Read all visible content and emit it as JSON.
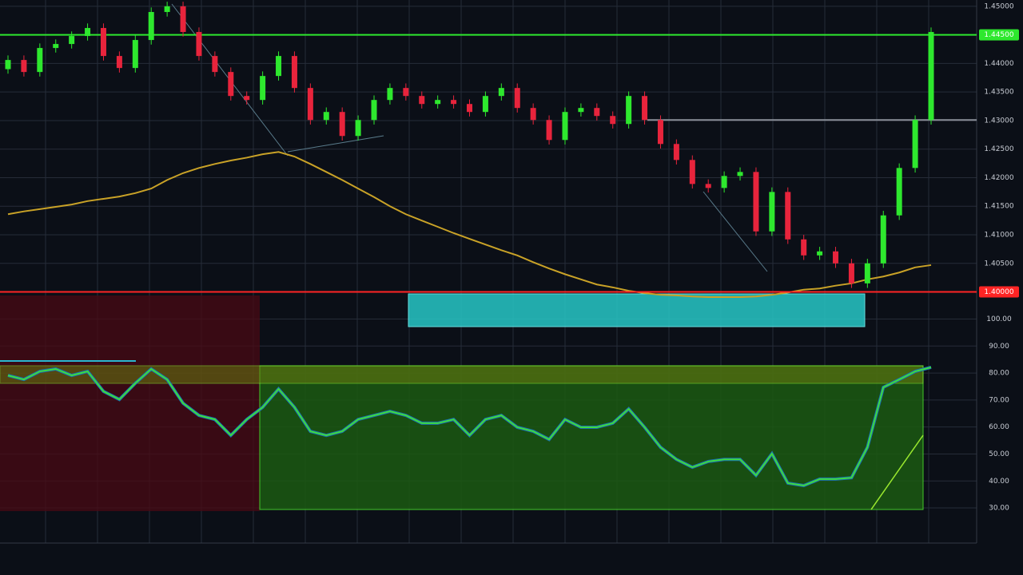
{
  "chart_data": [
    {
      "type": "candlestick",
      "up_color": "#2ee82e",
      "down_color": "#e8243c",
      "open": [
        1.439,
        1.4406,
        1.4385,
        1.4427,
        1.4434,
        1.4448,
        1.4462,
        1.4413,
        1.4392,
        1.4441,
        1.449,
        1.45,
        1.4455,
        1.4413,
        1.4385,
        1.4343,
        1.4336,
        1.4378,
        1.4413,
        1.4357,
        1.4301,
        1.4315,
        1.4273,
        1.4301,
        1.4336,
        1.4357,
        1.4343,
        1.4329,
        1.4336,
        1.4329,
        1.4315,
        1.4343,
        1.4357,
        1.4322,
        1.4301,
        1.4266,
        1.4315,
        1.4322,
        1.4308,
        1.4294,
        1.4343,
        1.4301,
        1.4259,
        1.4231,
        1.4189,
        1.4182,
        1.4203,
        1.421,
        1.4106,
        1.4175,
        1.4092,
        1.4064,
        1.4071,
        1.405,
        1.4015,
        1.405,
        1.4134,
        1.4217,
        1.4301
      ],
      "high": [
        1.4414,
        1.4414,
        1.4435,
        1.4442,
        1.4456,
        1.447,
        1.447,
        1.4421,
        1.4449,
        1.4498,
        1.4508,
        1.4508,
        1.4463,
        1.4421,
        1.4393,
        1.4351,
        1.4386,
        1.4421,
        1.4421,
        1.4365,
        1.4323,
        1.4323,
        1.4309,
        1.4344,
        1.4365,
        1.4365,
        1.4351,
        1.4344,
        1.4344,
        1.4337,
        1.4351,
        1.4365,
        1.4365,
        1.433,
        1.4309,
        1.4323,
        1.433,
        1.433,
        1.4316,
        1.4351,
        1.4351,
        1.4309,
        1.4267,
        1.4239,
        1.4197,
        1.4211,
        1.4218,
        1.4218,
        1.4183,
        1.4183,
        1.41,
        1.4079,
        1.4079,
        1.4058,
        1.4058,
        1.4142,
        1.4225,
        1.4309,
        1.4463
      ],
      "low": [
        1.4382,
        1.4377,
        1.4377,
        1.4419,
        1.4426,
        1.444,
        1.4405,
        1.4384,
        1.4384,
        1.4433,
        1.4482,
        1.4447,
        1.4405,
        1.4377,
        1.4335,
        1.4328,
        1.4328,
        1.437,
        1.4349,
        1.4293,
        1.4293,
        1.4265,
        1.4265,
        1.4293,
        1.4328,
        1.4335,
        1.4321,
        1.4321,
        1.4321,
        1.4307,
        1.4307,
        1.4335,
        1.4314,
        1.4293,
        1.4258,
        1.4258,
        1.4307,
        1.43,
        1.4286,
        1.4286,
        1.4293,
        1.4251,
        1.4223,
        1.4181,
        1.4174,
        1.4174,
        1.4195,
        1.4098,
        1.4098,
        1.4084,
        1.4056,
        1.4056,
        1.4042,
        1.4007,
        1.4007,
        1.4042,
        1.4126,
        1.4209,
        1.4293
      ],
      "close": [
        1.4406,
        1.4385,
        1.4427,
        1.4434,
        1.4448,
        1.4462,
        1.4413,
        1.4392,
        1.4441,
        1.449,
        1.45,
        1.4455,
        1.4413,
        1.4385,
        1.4343,
        1.4336,
        1.4378,
        1.4413,
        1.4357,
        1.4301,
        1.4315,
        1.4273,
        1.4301,
        1.4336,
        1.4357,
        1.4343,
        1.4329,
        1.4336,
        1.4329,
        1.4315,
        1.4343,
        1.4357,
        1.4322,
        1.4301,
        1.4266,
        1.4315,
        1.4322,
        1.4308,
        1.4294,
        1.4343,
        1.4301,
        1.4259,
        1.4231,
        1.4189,
        1.4182,
        1.4203,
        1.421,
        1.4106,
        1.4175,
        1.4092,
        1.4064,
        1.4071,
        1.405,
        1.4015,
        1.405,
        1.4134,
        1.4217,
        1.4301,
        1.4455
      ],
      "moving_average": {
        "color": "#c9a227",
        "values": [
          1.4136,
          1.4141,
          1.4145,
          1.4149,
          1.4153,
          1.4159,
          1.4163,
          1.4167,
          1.4173,
          1.4181,
          1.4196,
          1.4208,
          1.4217,
          1.4224,
          1.423,
          1.4235,
          1.4241,
          1.4245,
          1.4237,
          1.4224,
          1.421,
          1.4196,
          1.4181,
          1.4166,
          1.415,
          1.4136,
          1.4125,
          1.4114,
          1.4103,
          1.4093,
          1.4083,
          1.4073,
          1.4064,
          1.4052,
          1.4041,
          1.4031,
          1.4022,
          1.4013,
          1.4008,
          1.4002,
          1.3998,
          1.3995,
          1.3994,
          1.3992,
          1.3991,
          1.3991,
          1.3991,
          1.3992,
          1.3995,
          1.3999,
          1.4004,
          1.4006,
          1.4011,
          1.4015,
          1.4022,
          1.4027,
          1.4034,
          1.4043,
          1.4047
        ]
      },
      "levels": [
        {
          "value": 1.445,
          "label": "1.44500",
          "color": "#2ee82e"
        },
        {
          "value": 1.4,
          "label": "1.40000",
          "color": "#ff2424"
        },
        {
          "value": 1.4301,
          "color": "#8a8f99"
        }
      ],
      "ylim": [
        1.3984,
        1.4511
      ],
      "yticks": [
        {
          "value": 1.45,
          "label": "1.45000"
        },
        {
          "value": 1.445,
          "label": "1.44500"
        },
        {
          "value": 1.44,
          "label": "1.44000"
        },
        {
          "value": 1.435,
          "label": "1.43500"
        },
        {
          "value": 1.43,
          "label": "1.43000"
        },
        {
          "value": 1.425,
          "label": "1.42500"
        },
        {
          "value": 1.42,
          "label": "1.42000"
        },
        {
          "value": 1.415,
          "label": "1.41500"
        },
        {
          "value": 1.41,
          "label": "1.41000"
        },
        {
          "value": 1.405,
          "label": "1.40500"
        }
      ],
      "grid": true
    },
    {
      "type": "line",
      "color": "#3ddc3d",
      "values": [
        79.1,
        77.6,
        80.6,
        81.5,
        79.1,
        80.6,
        73.2,
        70.2,
        76.2,
        81.5,
        77.6,
        68.8,
        64.3,
        62.8,
        56.9,
        62.8,
        67.3,
        74.1,
        67.3,
        58.4,
        56.9,
        58.4,
        62.8,
        64.3,
        65.8,
        64.3,
        61.4,
        61.4,
        62.8,
        56.9,
        62.8,
        64.3,
        59.9,
        58.4,
        55.4,
        62.8,
        59.9,
        59.9,
        61.4,
        66.7,
        59.9,
        52.5,
        48.0,
        45.1,
        47.2,
        48.0,
        48.0,
        42.1,
        50.1,
        39.2,
        38.3,
        40.7,
        40.7,
        41.2,
        52.5,
        74.7,
        77.6,
        80.6,
        82.1
      ],
      "ylim": [
        17,
        102.8
      ],
      "yticks": [
        {
          "value": 100,
          "label": "100.00"
        },
        {
          "value": 90,
          "label": "90.00"
        },
        {
          "value": 80,
          "label": "80.00"
        },
        {
          "value": 70,
          "label": "70.00"
        },
        {
          "value": 60,
          "label": "60.00"
        },
        {
          "value": 50,
          "label": "50.00"
        },
        {
          "value": 40,
          "label": "40.00"
        },
        {
          "value": 30,
          "label": "30.00"
        }
      ],
      "grid": true
    }
  ]
}
